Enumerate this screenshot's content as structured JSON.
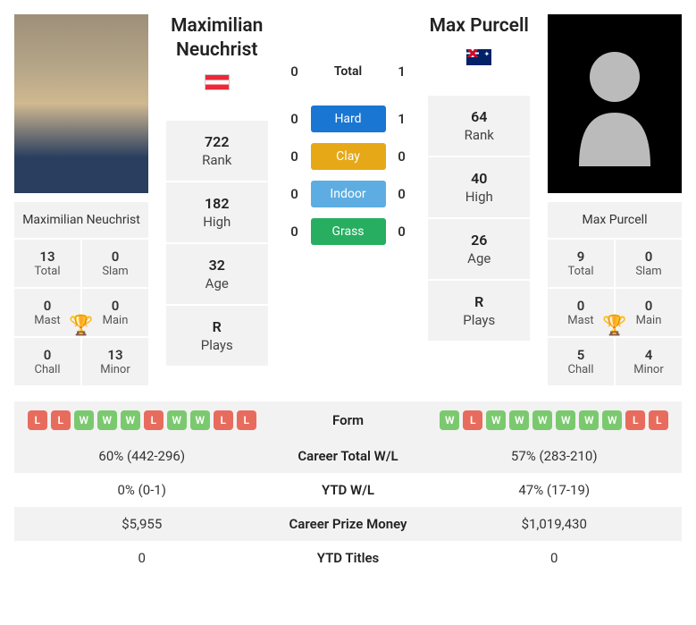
{
  "colors": {
    "box_bg": "#f2f2f2",
    "hard": "#1976d2",
    "clay": "#e6a817",
    "indoor": "#5dade2",
    "grass": "#27ae60",
    "win_badge": "#7bc96f",
    "loss_badge": "#e86c5d",
    "trophy": "#5a8fc7"
  },
  "player1": {
    "name": "Maximilian Neuchrist",
    "country": "AT",
    "rank": "722",
    "high": "182",
    "age": "32",
    "plays": "R",
    "titles": {
      "total": "13",
      "slam": "0",
      "mast": "0",
      "main": "0",
      "chall": "0",
      "minor": "13"
    },
    "card_name": "Maximilian Neuchrist"
  },
  "player2": {
    "name": "Max Purcell",
    "country": "AU",
    "rank": "64",
    "high": "40",
    "age": "26",
    "plays": "R",
    "titles": {
      "total": "9",
      "slam": "0",
      "mast": "0",
      "main": "0",
      "chall": "5",
      "minor": "4"
    },
    "card_name": "Max Purcell"
  },
  "stat_labels": {
    "rank": "Rank",
    "high": "High",
    "age": "Age",
    "plays": "Plays",
    "total": "Total",
    "slam": "Slam",
    "mast": "Mast",
    "main": "Main",
    "chall": "Chall",
    "minor": "Minor"
  },
  "h2h": {
    "total_label": "Total",
    "total": {
      "p1": "0",
      "p2": "1"
    },
    "surfaces": [
      {
        "name": "Hard",
        "class": "surf-hard",
        "p1": "0",
        "p2": "1"
      },
      {
        "name": "Clay",
        "class": "surf-clay",
        "p1": "0",
        "p2": "0"
      },
      {
        "name": "Indoor",
        "class": "surf-indoor",
        "p1": "0",
        "p2": "0"
      },
      {
        "name": "Grass",
        "class": "surf-grass",
        "p1": "0",
        "p2": "0"
      }
    ]
  },
  "form": {
    "label": "Form",
    "p1": [
      "L",
      "L",
      "W",
      "W",
      "W",
      "L",
      "W",
      "W",
      "L",
      "L"
    ],
    "p2": [
      "W",
      "L",
      "W",
      "W",
      "W",
      "W",
      "W",
      "W",
      "L",
      "L"
    ]
  },
  "bottom": [
    {
      "label": "Career Total W/L",
      "p1": "60% (442-296)",
      "p2": "57% (283-210)"
    },
    {
      "label": "YTD W/L",
      "p1": "0% (0-1)",
      "p2": "47% (17-19)"
    },
    {
      "label": "Career Prize Money",
      "p1": "$5,955",
      "p2": "$1,019,430"
    },
    {
      "label": "YTD Titles",
      "p1": "0",
      "p2": "0"
    }
  ]
}
